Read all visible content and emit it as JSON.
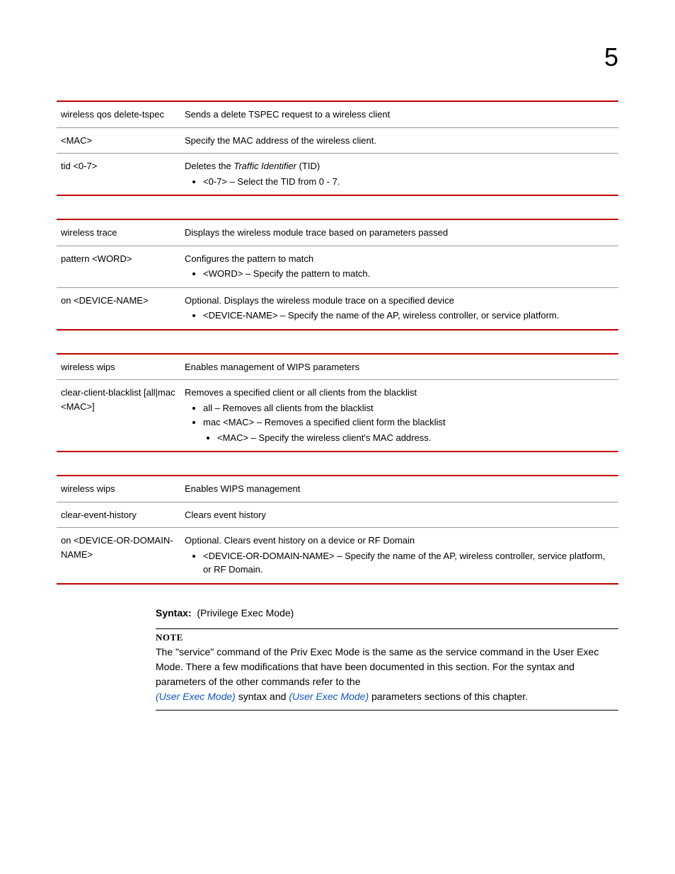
{
  "page_number": "5",
  "tables": [
    {
      "rows": [
        {
          "left": "wireless qos delete-tspec",
          "desc": "Sends a delete TSPEC request to a wireless client"
        },
        {
          "left": "<MAC>",
          "desc": "Specify the MAC address of the wireless client."
        },
        {
          "left": "tid <0-7>",
          "desc_intro": "Deletes the ",
          "desc_italic": "Traffic Identifier",
          "desc_after": " (TID)",
          "bullets": [
            "<0-7> – Select the TID from 0 - 7."
          ]
        }
      ]
    },
    {
      "rows": [
        {
          "left": "wireless trace",
          "desc": "Displays the wireless module trace based on parameters passed"
        },
        {
          "left": "pattern <WORD>",
          "desc": "Configures the pattern to match",
          "bullets": [
            "<WORD> – Specify the pattern to match."
          ]
        },
        {
          "left": "on <DEVICE-NAME>",
          "desc": "Optional. Displays the wireless module trace on a specified device",
          "bullets": [
            "<DEVICE-NAME> – Specify the name of the AP, wireless controller, or service platform."
          ]
        }
      ]
    },
    {
      "rows": [
        {
          "left": "wireless wips",
          "desc": "Enables management of WIPS parameters"
        },
        {
          "left": "clear-client-blacklist [all|mac <MAC>]",
          "desc": "Removes a specified client or all clients from the blacklist",
          "bullets": [
            "all – Removes all clients from the blacklist",
            "mac <MAC> – Removes a specified client form the blacklist"
          ],
          "nested_bullets": [
            "<MAC> – Specify the wireless client's MAC address."
          ]
        }
      ]
    },
    {
      "rows": [
        {
          "left": "wireless wips",
          "desc": "Enables WIPS management"
        },
        {
          "left": "clear-event-history",
          "desc": "Clears event history"
        },
        {
          "left": "on <DEVICE-OR-DOMAIN-NAME>",
          "desc": "Optional. Clears event history on a device or RF Domain",
          "bullets": [
            "<DEVICE-OR-DOMAIN-NAME> – Specify the name of the AP, wireless controller, service platform, or RF Domain."
          ]
        }
      ]
    }
  ],
  "syntax": {
    "label": "Syntax:",
    "text": "(Privilege Exec Mode)"
  },
  "note": {
    "header": "NOTE",
    "body1": "The \"service\" command of the Priv Exec Mode is the same as the service command in the User Exec Mode. There a few modifications that have been documented in this section. For the syntax and parameters of the other commands refer to the",
    "link1": "(User Exec Mode)",
    "mid": " syntax and ",
    "link2": "(User Exec Mode)",
    "body2": " parameters sections of this chapter."
  }
}
